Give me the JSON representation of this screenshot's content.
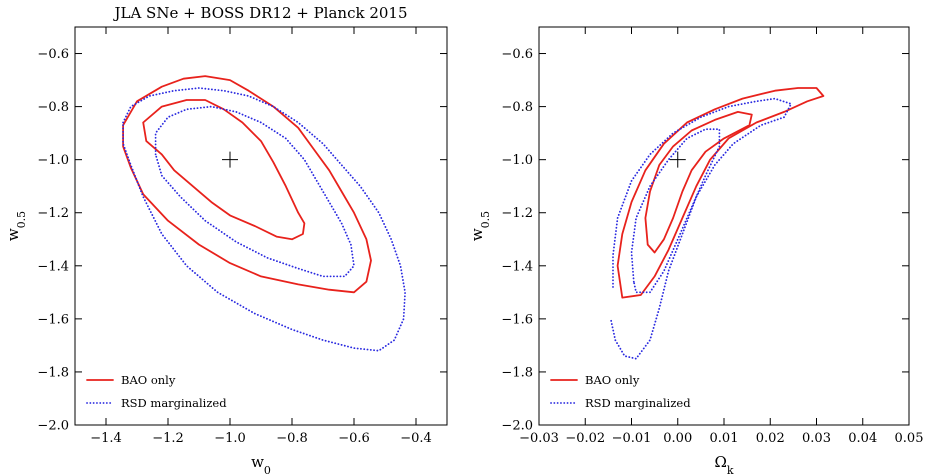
{
  "chart_data": [
    {
      "type": "contour",
      "title": "JLA SNe + BOSS DR12 + Planck 2015",
      "xlabel": "w",
      "xlabel_sub": "0",
      "ylabel": "w",
      "ylabel_sub": "0.5",
      "xlim": [
        -1.5,
        -0.3
      ],
      "ylim": [
        -2.0,
        -0.5
      ],
      "xticks": [
        -1.4,
        -1.2,
        -1.0,
        -0.8,
        -0.6,
        -0.4
      ],
      "xtick_labels": [
        "−1.4",
        "−1.2",
        "−1.0",
        "−0.8",
        "−0.6",
        "−0.4"
      ],
      "yticks": [
        -2.0,
        -1.8,
        -1.6,
        -1.4,
        -1.2,
        -1.0,
        -0.8,
        -0.6
      ],
      "ytick_labels": [
        "−2.0",
        "−1.8",
        "−1.6",
        "−1.4",
        "−1.2",
        "−1.0",
        "−0.8",
        "−0.6"
      ],
      "fiducial": {
        "x": -1.0,
        "y": -1.0
      },
      "legend": {
        "position": "bottom-left",
        "entries": [
          "BAO only",
          "RSD marginalized"
        ]
      },
      "series": [
        {
          "name": "BAO only",
          "color": "#e8221c",
          "style": "solid",
          "contours": [
            [
              [
                -1.28,
                -0.86
              ],
              [
                -1.22,
                -0.8
              ],
              [
                -1.14,
                -0.775
              ],
              [
                -1.08,
                -0.775
              ],
              [
                -1.02,
                -0.81
              ],
              [
                -0.96,
                -0.86
              ],
              [
                -0.9,
                -0.93
              ],
              [
                -0.86,
                -1.01
              ],
              [
                -0.82,
                -1.1
              ],
              [
                -0.78,
                -1.2
              ],
              [
                -0.76,
                -1.24
              ],
              [
                -0.765,
                -1.28
              ],
              [
                -0.8,
                -1.3
              ],
              [
                -0.85,
                -1.29
              ],
              [
                -0.92,
                -1.25
              ],
              [
                -1.0,
                -1.21
              ],
              [
                -1.06,
                -1.16
              ],
              [
                -1.12,
                -1.1
              ],
              [
                -1.18,
                -1.04
              ],
              [
                -1.22,
                -0.98
              ],
              [
                -1.27,
                -0.93
              ],
              [
                -1.28,
                -0.86
              ]
            ],
            [
              [
                -1.345,
                -0.87
              ],
              [
                -1.3,
                -0.78
              ],
              [
                -1.22,
                -0.725
              ],
              [
                -1.15,
                -0.695
              ],
              [
                -1.08,
                -0.685
              ],
              [
                -1.0,
                -0.7
              ],
              [
                -0.94,
                -0.74
              ],
              [
                -0.86,
                -0.8
              ],
              [
                -0.78,
                -0.88
              ],
              [
                -0.73,
                -0.96
              ],
              [
                -0.68,
                -1.04
              ],
              [
                -0.64,
                -1.12
              ],
              [
                -0.6,
                -1.2
              ],
              [
                -0.56,
                -1.3
              ],
              [
                -0.545,
                -1.38
              ],
              [
                -0.56,
                -1.46
              ],
              [
                -0.6,
                -1.5
              ],
              [
                -0.68,
                -1.49
              ],
              [
                -0.78,
                -1.47
              ],
              [
                -0.9,
                -1.44
              ],
              [
                -1.0,
                -1.39
              ],
              [
                -1.1,
                -1.32
              ],
              [
                -1.2,
                -1.23
              ],
              [
                -1.28,
                -1.13
              ],
              [
                -1.32,
                -1.03
              ],
              [
                -1.345,
                -0.95
              ],
              [
                -1.345,
                -0.87
              ]
            ]
          ]
        },
        {
          "name": "RSD marginalized",
          "color": "#2a2ae0",
          "style": "dotted",
          "contours": [
            [
              [
                -1.24,
                -0.98
              ],
              [
                -1.24,
                -0.9
              ],
              [
                -1.2,
                -0.84
              ],
              [
                -1.14,
                -0.81
              ],
              [
                -1.06,
                -0.8
              ],
              [
                -0.98,
                -0.82
              ],
              [
                -0.9,
                -0.86
              ],
              [
                -0.82,
                -0.92
              ],
              [
                -0.76,
                -1.0
              ],
              [
                -0.72,
                -1.08
              ],
              [
                -0.68,
                -1.16
              ],
              [
                -0.64,
                -1.24
              ],
              [
                -0.61,
                -1.32
              ],
              [
                -0.6,
                -1.4
              ],
              [
                -0.63,
                -1.44
              ],
              [
                -0.7,
                -1.44
              ],
              [
                -0.78,
                -1.41
              ],
              [
                -0.88,
                -1.37
              ],
              [
                -0.98,
                -1.31
              ],
              [
                -1.08,
                -1.23
              ],
              [
                -1.16,
                -1.14
              ],
              [
                -1.22,
                -1.06
              ],
              [
                -1.24,
                -0.98
              ]
            ],
            [
              [
                -1.345,
                -0.86
              ],
              [
                -1.32,
                -0.8
              ],
              [
                -1.26,
                -0.76
              ],
              [
                -1.18,
                -0.74
              ],
              [
                -1.1,
                -0.73
              ],
              [
                -1.02,
                -0.74
              ],
              [
                -0.94,
                -0.76
              ],
              [
                -0.86,
                -0.8
              ],
              [
                -0.78,
                -0.86
              ],
              [
                -0.7,
                -0.94
              ],
              [
                -0.64,
                -1.02
              ],
              [
                -0.58,
                -1.1
              ],
              [
                -0.52,
                -1.2
              ],
              [
                -0.48,
                -1.3
              ],
              [
                -0.45,
                -1.4
              ],
              [
                -0.435,
                -1.5
              ],
              [
                -0.44,
                -1.6
              ],
              [
                -0.47,
                -1.68
              ],
              [
                -0.52,
                -1.72
              ],
              [
                -0.6,
                -1.71
              ],
              [
                -0.7,
                -1.68
              ],
              [
                -0.8,
                -1.64
              ],
              [
                -0.92,
                -1.58
              ],
              [
                -1.04,
                -1.5
              ],
              [
                -1.14,
                -1.4
              ],
              [
                -1.22,
                -1.28
              ],
              [
                -1.28,
                -1.14
              ],
              [
                -1.32,
                -1.02
              ],
              [
                -1.345,
                -0.94
              ],
              [
                -1.345,
                -0.86
              ]
            ]
          ]
        }
      ]
    },
    {
      "type": "contour",
      "title": "",
      "xlabel": "Ω",
      "xlabel_sub": "k",
      "ylabel": "w",
      "ylabel_sub": "0.5",
      "xlim": [
        -0.03,
        0.05
      ],
      "ylim": [
        -2.0,
        -0.5
      ],
      "xticks": [
        -0.03,
        -0.02,
        -0.01,
        0.0,
        0.01,
        0.02,
        0.03,
        0.04,
        0.05
      ],
      "xtick_labels": [
        "−0.03",
        "−0.02",
        "−0.01",
        "0.00",
        "0.01",
        "0.02",
        "0.03",
        "0.04",
        "0.05"
      ],
      "yticks": [
        -2.0,
        -1.8,
        -1.6,
        -1.4,
        -1.2,
        -1.0,
        -0.8,
        -0.6
      ],
      "ytick_labels": [
        "−2.0",
        "−1.8",
        "−1.6",
        "−1.4",
        "−1.2",
        "−1.0",
        "−0.8",
        "−0.6"
      ],
      "fiducial": {
        "x": 0.0,
        "y": -1.0
      },
      "legend": {
        "position": "bottom-left",
        "entries": [
          "BAO only",
          "RSD marginalized"
        ]
      },
      "series": [
        {
          "name": "BAO only",
          "color": "#e8221c",
          "style": "solid",
          "contours": [
            [
              [
                -0.0065,
                -1.32
              ],
              [
                -0.007,
                -1.22
              ],
              [
                -0.006,
                -1.12
              ],
              [
                -0.004,
                -1.02
              ],
              [
                -0.001,
                -0.95
              ],
              [
                0.003,
                -0.89
              ],
              [
                0.008,
                -0.85
              ],
              [
                0.013,
                -0.82
              ],
              [
                0.016,
                -0.83
              ],
              [
                0.0155,
                -0.87
              ],
              [
                0.01,
                -0.92
              ],
              [
                0.006,
                -0.97
              ],
              [
                0.003,
                -1.04
              ],
              [
                0.001,
                -1.12
              ],
              [
                -0.001,
                -1.22
              ],
              [
                -0.003,
                -1.3
              ],
              [
                -0.005,
                -1.35
              ],
              [
                -0.0065,
                -1.32
              ]
            ],
            [
              [
                -0.012,
                -1.52
              ],
              [
                -0.013,
                -1.4
              ],
              [
                -0.012,
                -1.28
              ],
              [
                -0.01,
                -1.16
              ],
              [
                -0.007,
                -1.04
              ],
              [
                -0.003,
                -0.94
              ],
              [
                0.002,
                -0.86
              ],
              [
                0.008,
                -0.81
              ],
              [
                0.014,
                -0.77
              ],
              [
                0.021,
                -0.74
              ],
              [
                0.026,
                -0.73
              ],
              [
                0.03,
                -0.73
              ],
              [
                0.0315,
                -0.76
              ],
              [
                0.028,
                -0.78
              ],
              [
                0.023,
                -0.82
              ],
              [
                0.017,
                -0.86
              ],
              [
                0.011,
                -0.92
              ],
              [
                0.007,
                -1.0
              ],
              [
                0.004,
                -1.1
              ],
              [
                0.001,
                -1.22
              ],
              [
                -0.002,
                -1.34
              ],
              [
                -0.005,
                -1.44
              ],
              [
                -0.008,
                -1.51
              ],
              [
                -0.012,
                -1.52
              ]
            ]
          ]
        },
        {
          "name": "RSD marginalized",
          "color": "#2a2ae0",
          "style": "dotted",
          "contours": [
            [
              [
                -0.0095,
                -1.46
              ],
              [
                -0.01,
                -1.35
              ],
              [
                -0.009,
                -1.22
              ],
              [
                -0.006,
                -1.1
              ],
              [
                -0.002,
                -1.0
              ],
              [
                0.002,
                -0.92
              ],
              [
                0.006,
                -0.885
              ],
              [
                0.009,
                -0.885
              ],
              [
                0.009,
                -0.95
              ],
              [
                0.006,
                -1.06
              ],
              [
                0.003,
                -1.18
              ],
              [
                0.0,
                -1.3
              ],
              [
                -0.003,
                -1.42
              ],
              [
                -0.006,
                -1.5
              ],
              [
                -0.009,
                -1.5
              ],
              [
                -0.0095,
                -1.46
              ]
            ],
            [
              [
                -0.014,
                -1.48
              ],
              [
                -0.014,
                -1.36
              ],
              [
                -0.013,
                -1.22
              ],
              [
                -0.01,
                -1.08
              ],
              [
                -0.006,
                -0.98
              ],
              [
                -0.001,
                -0.9
              ],
              [
                0.005,
                -0.84
              ],
              [
                0.011,
                -0.8
              ],
              [
                0.017,
                -0.78
              ],
              [
                0.021,
                -0.77
              ],
              [
                0.0245,
                -0.79
              ],
              [
                0.023,
                -0.84
              ],
              [
                0.018,
                -0.87
              ],
              [
                0.012,
                -0.94
              ],
              [
                0.008,
                -1.02
              ],
              [
                0.004,
                -1.14
              ],
              [
                0.001,
                -1.28
              ],
              [
                -0.002,
                -1.42
              ],
              [
                -0.004,
                -1.56
              ],
              [
                -0.006,
                -1.68
              ],
              [
                -0.009,
                -1.75
              ],
              [
                -0.0115,
                -1.74
              ],
              [
                -0.0135,
                -1.68
              ],
              [
                -0.0145,
                -1.6
              ]
            ]
          ]
        }
      ]
    }
  ]
}
